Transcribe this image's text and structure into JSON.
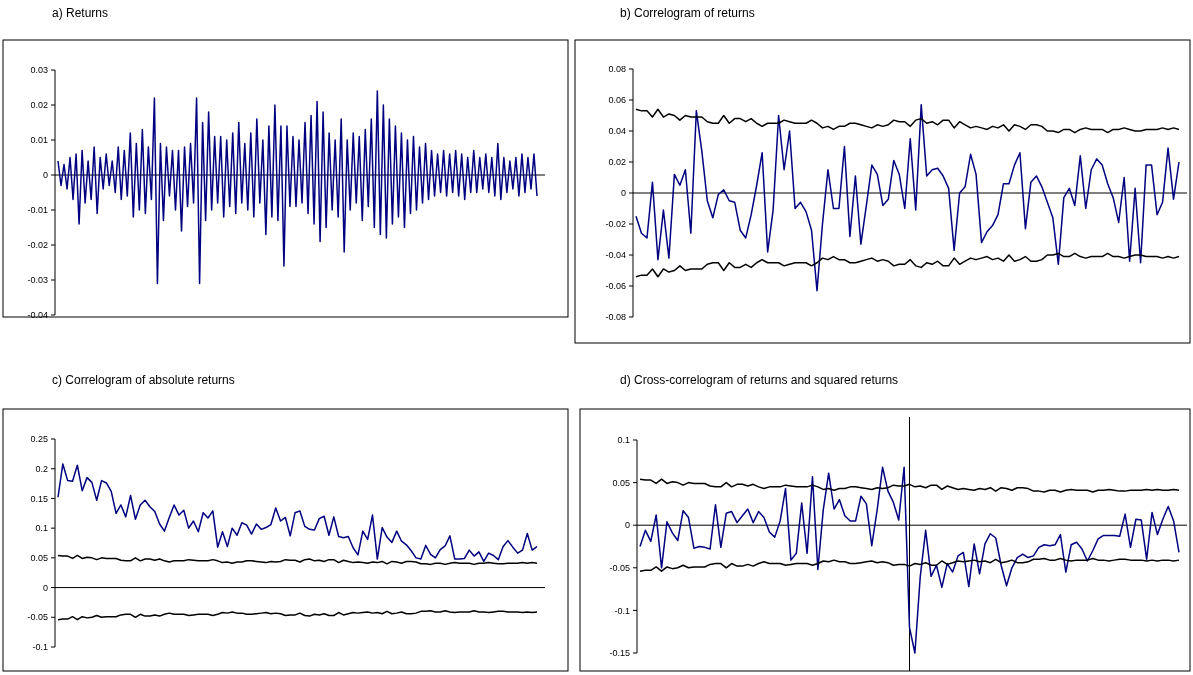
{
  "chart_data": [
    {
      "type": "line",
      "title": "a) Returns",
      "ylim": [
        -0.04,
        0.03
      ],
      "yticks": [
        -0.04,
        -0.03,
        -0.02,
        -0.01,
        0,
        0.01,
        0.02,
        0.03
      ],
      "tick_labels": "y",
      "categories": [
        null,
        null,
        null,
        null,
        null,
        null,
        null,
        null,
        null,
        null,
        null,
        null,
        null,
        null,
        null,
        null,
        null,
        null,
        null,
        null,
        null,
        null,
        null,
        null,
        null,
        null,
        null,
        null,
        null,
        null,
        null,
        null,
        null,
        null,
        null,
        null,
        null,
        null,
        null,
        null,
        null,
        null,
        null,
        null,
        null,
        null,
        null,
        null,
        null,
        null,
        null,
        null,
        null,
        null,
        null,
        null,
        null,
        null,
        null,
        null,
        null,
        null,
        null,
        null,
        null,
        null,
        null,
        null,
        null,
        null,
        null,
        null,
        null,
        null,
        null,
        null,
        null,
        null,
        null,
        null,
        null,
        null,
        null,
        null,
        null,
        null,
        null,
        null,
        null,
        null,
        null,
        null,
        null,
        null,
        null,
        null,
        null,
        null,
        null,
        null,
        null,
        null,
        null,
        null,
        null,
        null,
        null,
        null,
        null,
        null,
        null,
        null,
        null,
        null,
        null,
        null,
        null,
        null,
        null,
        null,
        null,
        null,
        null,
        null,
        null,
        null,
        null,
        null,
        null,
        null,
        null,
        null,
        null,
        null,
        null,
        null,
        null,
        null,
        null,
        null,
        null,
        null,
        null,
        null,
        null,
        null,
        null,
        null,
        null,
        null,
        null,
        null,
        null,
        null,
        null,
        null,
        null,
        null,
        null,
        null
      ],
      "series": [
        {
          "color": "#000080",
          "values": [
            0.004,
            -0.003,
            0.003,
            -0.004,
            0.005,
            -0.007,
            0.006,
            -0.014,
            0.007,
            -0.008,
            0.004,
            -0.007,
            0.008,
            -0.011,
            0.005,
            -0.004,
            0.006,
            -0.003,
            0.004,
            -0.005,
            0.008,
            -0.007,
            0.007,
            -0.006,
            0.012,
            -0.012,
            0.009,
            -0.01,
            0.013,
            -0.011,
            0.008,
            -0.007,
            0.022,
            -0.031,
            0.009,
            -0.013,
            0.008,
            -0.006,
            0.007,
            -0.01,
            0.007,
            -0.016,
            0.008,
            -0.009,
            0.009,
            -0.008,
            0.022,
            -0.031,
            0.015,
            -0.013,
            0.018,
            -0.01,
            0.011,
            -0.008,
            0.011,
            -0.012,
            0.01,
            -0.009,
            0.012,
            -0.011,
            0.015,
            -0.008,
            0.009,
            -0.01,
            0.012,
            -0.012,
            0.016,
            -0.008,
            0.01,
            -0.017,
            0.014,
            -0.012,
            0.02,
            -0.013,
            0.014,
            -0.026,
            0.014,
            -0.009,
            0.011,
            -0.009,
            0.01,
            -0.008,
            0.015,
            -0.011,
            0.017,
            -0.014,
            0.021,
            -0.019,
            0.018,
            -0.015,
            0.012,
            -0.01,
            0.01,
            -0.012,
            0.016,
            -0.022,
            0.01,
            -0.01,
            0.012,
            -0.008,
            0.011,
            -0.013,
            0.013,
            -0.009,
            0.016,
            -0.015,
            0.024,
            -0.017,
            0.02,
            -0.018,
            0.016,
            -0.014,
            0.014,
            -0.012,
            0.012,
            -0.015,
            0.01,
            -0.011,
            0.011,
            -0.01,
            0.008,
            -0.008,
            0.009,
            -0.007,
            0.007,
            -0.006,
            0.006,
            -0.005,
            0.007,
            -0.006,
            0.006,
            -0.005,
            0.007,
            -0.006,
            0.006,
            -0.007,
            0.005,
            -0.005,
            0.007,
            -0.005,
            0.005,
            -0.004,
            0.006,
            -0.005,
            0.005,
            -0.006,
            0.009,
            -0.007,
            0.005,
            -0.005,
            0.004,
            -0.004,
            0.005,
            -0.006,
            0.006,
            -0.005,
            0.005,
            -0.004,
            0.006,
            -0.006
          ]
        }
      ]
    },
    {
      "type": "line",
      "title": "b) Correlogram of returns",
      "ylim": [
        -0.08,
        0.08
      ],
      "yticks": [
        -0.08,
        -0.06,
        -0.04,
        -0.02,
        0,
        0.02,
        0.04,
        0.06,
        0.08
      ],
      "tick_labels": "y",
      "categories": [
        null,
        null,
        null,
        null,
        null,
        null,
        null,
        null,
        null,
        null,
        null,
        null,
        null,
        null,
        null,
        null,
        null,
        null,
        null,
        null,
        null,
        null,
        null,
        null,
        null,
        null,
        null,
        null,
        null,
        null,
        null,
        null,
        null,
        null,
        null,
        null,
        null,
        null,
        null,
        null,
        null,
        null,
        null,
        null,
        null,
        null,
        null,
        null,
        null,
        null,
        null,
        null,
        null,
        null,
        null,
        null,
        null,
        null,
        null,
        null,
        null,
        null,
        null,
        null,
        null,
        null,
        null,
        null,
        null,
        null,
        null,
        null,
        null,
        null,
        null,
        null,
        null,
        null,
        null,
        null,
        null,
        null,
        null,
        null,
        null,
        null,
        null,
        null,
        null,
        null,
        null,
        null,
        null,
        null,
        null,
        null,
        null,
        null,
        null,
        null
      ],
      "series": [
        {
          "color": "#000080",
          "values": [
            -0.015,
            -0.026,
            -0.029,
            0.007,
            -0.043,
            -0.011,
            -0.042,
            0.012,
            0.005,
            0.015,
            -0.026,
            0.053,
            0.027,
            -0.005,
            -0.016,
            -0.001,
            0.002,
            -0.005,
            -0.006,
            -0.024,
            -0.029,
            -0.014,
            0.005,
            0.026,
            -0.038,
            -0.011,
            0.05,
            0.015,
            0.04,
            -0.01,
            -0.006,
            -0.012,
            -0.024,
            -0.063,
            -0.02,
            0.015,
            -0.01,
            -0.01,
            0.03,
            -0.028,
            0.011,
            -0.033,
            -0.008,
            0.018,
            0.012,
            -0.008,
            -0.004,
            0.021,
            0.012,
            -0.01,
            0.035,
            -0.011,
            0.057,
            0.011,
            0.015,
            0.016,
            0.011,
            0.003,
            -0.037,
            0.0,
            0.004,
            0.025,
            0.012,
            -0.032,
            -0.025,
            -0.021,
            -0.014,
            0.006,
            0.006,
            0.018,
            0.026,
            -0.023,
            0.007,
            0.011,
            0.004,
            -0.006,
            -0.016,
            -0.046,
            -0.003,
            0.003,
            -0.008,
            0.024,
            -0.01,
            0.015,
            0.022,
            0.018,
            0.006,
            -0.003,
            -0.019,
            0.01,
            -0.044,
            0.003,
            -0.045,
            0.018,
            0.018,
            -0.014,
            -0.006,
            0.029,
            -0.004,
            0.02
          ]
        },
        {
          "color": "#000000",
          "values": [
            0.054,
            0.053,
            0.053,
            0.049,
            0.054,
            0.049,
            0.051,
            0.05,
            0.047,
            0.05,
            0.049,
            0.049,
            0.049,
            0.046,
            0.045,
            0.045,
            0.05,
            0.045,
            0.048,
            0.048,
            0.046,
            0.048,
            0.045,
            0.043,
            0.045,
            0.045,
            0.045,
            0.047,
            0.046,
            0.045,
            0.045,
            0.045,
            0.047,
            0.045,
            0.042,
            0.043,
            0.041,
            0.043,
            0.043,
            0.045,
            0.045,
            0.044,
            0.043,
            0.042,
            0.044,
            0.043,
            0.044,
            0.047,
            0.046,
            0.046,
            0.043,
            0.047,
            0.048,
            0.045,
            0.046,
            0.044,
            0.047,
            0.047,
            0.042,
            0.046,
            0.044,
            0.042,
            0.043,
            0.042,
            0.041,
            0.043,
            0.042,
            0.044,
            0.04,
            0.044,
            0.043,
            0.041,
            0.044,
            0.044,
            0.043,
            0.04,
            0.04,
            0.039,
            0.041,
            0.041,
            0.039,
            0.041,
            0.042,
            0.041,
            0.041,
            0.041,
            0.039,
            0.041,
            0.041,
            0.042,
            0.041,
            0.04,
            0.04,
            0.041,
            0.041,
            0.041,
            0.042,
            0.041,
            0.042,
            0.041
          ]
        },
        {
          "color": "#000000",
          "values": [
            -0.054,
            -0.053,
            -0.053,
            -0.049,
            -0.054,
            -0.049,
            -0.051,
            -0.05,
            -0.047,
            -0.05,
            -0.049,
            -0.049,
            -0.049,
            -0.046,
            -0.045,
            -0.045,
            -0.05,
            -0.045,
            -0.048,
            -0.048,
            -0.046,
            -0.048,
            -0.045,
            -0.043,
            -0.045,
            -0.045,
            -0.045,
            -0.047,
            -0.046,
            -0.045,
            -0.045,
            -0.045,
            -0.047,
            -0.045,
            -0.042,
            -0.043,
            -0.041,
            -0.043,
            -0.043,
            -0.045,
            -0.045,
            -0.044,
            -0.043,
            -0.042,
            -0.044,
            -0.043,
            -0.044,
            -0.047,
            -0.046,
            -0.046,
            -0.043,
            -0.047,
            -0.048,
            -0.045,
            -0.046,
            -0.044,
            -0.047,
            -0.047,
            -0.042,
            -0.046,
            -0.044,
            -0.042,
            -0.043,
            -0.042,
            -0.041,
            -0.043,
            -0.042,
            -0.044,
            -0.04,
            -0.044,
            -0.043,
            -0.041,
            -0.044,
            -0.044,
            -0.043,
            -0.04,
            -0.04,
            -0.039,
            -0.041,
            -0.041,
            -0.039,
            -0.041,
            -0.042,
            -0.041,
            -0.041,
            -0.041,
            -0.039,
            -0.041,
            -0.041,
            -0.042,
            -0.041,
            -0.04,
            -0.04,
            -0.041,
            -0.041,
            -0.041,
            -0.042,
            -0.041,
            -0.042,
            -0.041
          ]
        }
      ]
    },
    {
      "type": "line",
      "title": "c) Correlogram of absolute returns",
      "ylim": [
        -0.1,
        0.25
      ],
      "yticks": [
        -0.1,
        -0.05,
        0,
        0.05,
        0.1,
        0.15,
        0.2,
        0.25
      ],
      "tick_labels": "y",
      "categories": [
        null,
        null,
        null,
        null,
        null,
        null,
        null,
        null,
        null,
        null,
        null,
        null,
        null,
        null,
        null,
        null,
        null,
        null,
        null,
        null,
        null,
        null,
        null,
        null,
        null,
        null,
        null,
        null,
        null,
        null,
        null,
        null,
        null,
        null,
        null,
        null,
        null,
        null,
        null,
        null,
        null,
        null,
        null,
        null,
        null,
        null,
        null,
        null,
        null,
        null,
        null,
        null,
        null,
        null,
        null,
        null,
        null,
        null,
        null,
        null,
        null,
        null,
        null,
        null,
        null,
        null,
        null,
        null,
        null,
        null,
        null,
        null,
        null,
        null,
        null,
        null,
        null,
        null,
        null,
        null,
        null,
        null,
        null,
        null,
        null,
        null,
        null,
        null,
        null,
        null,
        null,
        null,
        null,
        null,
        null,
        null,
        null,
        null,
        null,
        null
      ],
      "series": [
        {
          "color": "#000080",
          "values": [
            0.152,
            0.208,
            0.18,
            0.179,
            0.206,
            0.163,
            0.185,
            0.177,
            0.147,
            0.18,
            0.176,
            0.162,
            0.125,
            0.139,
            0.119,
            0.155,
            0.115,
            0.139,
            0.147,
            0.136,
            0.128,
            0.107,
            0.095,
            0.118,
            0.139,
            0.122,
            0.13,
            0.1,
            0.112,
            0.094,
            0.126,
            0.117,
            0.129,
            0.068,
            0.094,
            0.069,
            0.1,
            0.088,
            0.109,
            0.105,
            0.09,
            0.107,
            0.098,
            0.101,
            0.106,
            0.134,
            0.112,
            0.118,
            0.087,
            0.126,
            0.129,
            0.103,
            0.098,
            0.097,
            0.116,
            0.12,
            0.088,
            0.119,
            0.086,
            0.084,
            0.086,
            0.067,
            0.055,
            0.095,
            0.081,
            0.122,
            0.048,
            0.101,
            0.085,
            0.076,
            0.095,
            0.078,
            0.072,
            0.062,
            0.05,
            0.048,
            0.071,
            0.056,
            0.05,
            0.064,
            0.07,
            0.087,
            0.048,
            0.048,
            0.049,
            0.063,
            0.053,
            0.06,
            0.044,
            0.058,
            0.054,
            0.047,
            0.069,
            0.079,
            0.068,
            0.058,
            0.063,
            0.091,
            0.063,
            0.069
          ]
        },
        {
          "color": "#000000",
          "values": [
            0.054,
            0.053,
            0.053,
            0.049,
            0.054,
            0.049,
            0.051,
            0.05,
            0.047,
            0.05,
            0.049,
            0.049,
            0.049,
            0.046,
            0.045,
            0.045,
            0.05,
            0.045,
            0.048,
            0.048,
            0.046,
            0.048,
            0.045,
            0.043,
            0.045,
            0.045,
            0.045,
            0.047,
            0.046,
            0.045,
            0.045,
            0.045,
            0.047,
            0.045,
            0.042,
            0.043,
            0.041,
            0.043,
            0.043,
            0.045,
            0.045,
            0.044,
            0.043,
            0.042,
            0.044,
            0.043,
            0.044,
            0.047,
            0.046,
            0.046,
            0.043,
            0.047,
            0.048,
            0.045,
            0.046,
            0.044,
            0.047,
            0.047,
            0.042,
            0.046,
            0.044,
            0.042,
            0.043,
            0.042,
            0.041,
            0.043,
            0.042,
            0.044,
            0.04,
            0.044,
            0.043,
            0.041,
            0.044,
            0.044,
            0.043,
            0.04,
            0.04,
            0.039,
            0.041,
            0.041,
            0.039,
            0.041,
            0.042,
            0.041,
            0.041,
            0.041,
            0.039,
            0.041,
            0.041,
            0.042,
            0.041,
            0.04,
            0.04,
            0.041,
            0.041,
            0.041,
            0.042,
            0.041,
            0.042,
            0.041
          ]
        },
        {
          "color": "#000000",
          "values": [
            -0.054,
            -0.053,
            -0.053,
            -0.049,
            -0.054,
            -0.049,
            -0.051,
            -0.05,
            -0.047,
            -0.05,
            -0.049,
            -0.049,
            -0.049,
            -0.046,
            -0.045,
            -0.045,
            -0.05,
            -0.045,
            -0.048,
            -0.048,
            -0.046,
            -0.048,
            -0.045,
            -0.043,
            -0.045,
            -0.045,
            -0.045,
            -0.047,
            -0.046,
            -0.045,
            -0.045,
            -0.045,
            -0.047,
            -0.045,
            -0.042,
            -0.043,
            -0.041,
            -0.043,
            -0.043,
            -0.045,
            -0.045,
            -0.044,
            -0.043,
            -0.042,
            -0.044,
            -0.043,
            -0.044,
            -0.047,
            -0.046,
            -0.046,
            -0.043,
            -0.047,
            -0.048,
            -0.045,
            -0.046,
            -0.044,
            -0.047,
            -0.047,
            -0.042,
            -0.046,
            -0.044,
            -0.042,
            -0.043,
            -0.042,
            -0.041,
            -0.043,
            -0.042,
            -0.044,
            -0.04,
            -0.044,
            -0.043,
            -0.041,
            -0.044,
            -0.044,
            -0.043,
            -0.04,
            -0.04,
            -0.039,
            -0.041,
            -0.041,
            -0.039,
            -0.041,
            -0.042,
            -0.041,
            -0.041,
            -0.041,
            -0.039,
            -0.041,
            -0.041,
            -0.042,
            -0.041,
            -0.04,
            -0.04,
            -0.041,
            -0.041,
            -0.041,
            -0.042,
            -0.041,
            -0.042,
            -0.041
          ]
        }
      ]
    },
    {
      "type": "line",
      "title": "d) Cross-correlogram of returns and squared returns",
      "ylim": [
        -0.15,
        0.1
      ],
      "yticks": [
        -0.15,
        -0.1,
        -0.05,
        0,
        0.05,
        0.1
      ],
      "tick_labels": "y",
      "categories": [
        null,
        null,
        null,
        null,
        null,
        null,
        null,
        null,
        null,
        null,
        null,
        null,
        null,
        null,
        null,
        null,
        null,
        null,
        null,
        null,
        null,
        null,
        null,
        null,
        null,
        null,
        null,
        null,
        null,
        null,
        null,
        null,
        null,
        null,
        null,
        null,
        null,
        null,
        null,
        null,
        null,
        null,
        null,
        null,
        null,
        null,
        null,
        null,
        null,
        null,
        null,
        null,
        null,
        null,
        null,
        null,
        null,
        null,
        null,
        null,
        null,
        null,
        null,
        null,
        null,
        null,
        null,
        null,
        null,
        null,
        null,
        null,
        null,
        null,
        null,
        null,
        null,
        null,
        null,
        null,
        null,
        null,
        null,
        null,
        null,
        null,
        null,
        null,
        null,
        null,
        null,
        null,
        null,
        null,
        null,
        null,
        null,
        null,
        null,
        null,
        null
      ],
      "series": [
        {
          "color": "#000080",
          "values": [
            -0.025,
            -0.006,
            -0.019,
            0.012,
            -0.05,
            0.004,
            -0.009,
            -0.018,
            0.017,
            0.009,
            -0.027,
            -0.025,
            -0.026,
            -0.028,
            0.024,
            -0.026,
            0.014,
            0.016,
            0.003,
            0.011,
            0.019,
            0.003,
            0.016,
            0.009,
            -0.008,
            -0.014,
            0.005,
            0.043,
            -0.041,
            -0.033,
            0.026,
            -0.033,
            0.057,
            -0.052,
            0.018,
            0.061,
            0.019,
            0.03,
            0.011,
            0.005,
            0.005,
            0.034,
            0.025,
            -0.024,
            0.018,
            0.068,
            0.04,
            0.027,
            0.006,
            0.068,
            -0.12,
            -0.15,
            -0.06,
            -0.006,
            -0.06,
            -0.047,
            -0.073,
            -0.045,
            -0.055,
            -0.036,
            -0.032,
            -0.072,
            -0.022,
            -0.057,
            -0.022,
            -0.01,
            -0.015,
            -0.047,
            -0.071,
            -0.05,
            -0.038,
            -0.034,
            -0.038,
            -0.036,
            -0.026,
            -0.023,
            -0.024,
            -0.023,
            -0.011,
            -0.055,
            -0.023,
            -0.02,
            -0.028,
            -0.042,
            -0.03,
            -0.016,
            -0.012,
            -0.012,
            -0.012,
            -0.013,
            0.013,
            -0.026,
            0.007,
            0.006,
            -0.04,
            0.015,
            -0.011,
            0.007,
            0.022,
            0.005,
            -0.032
          ]
        },
        {
          "color": "#000000",
          "values": [
            0.054,
            0.053,
            0.053,
            0.049,
            0.054,
            0.049,
            0.051,
            0.05,
            0.047,
            0.05,
            0.049,
            0.049,
            0.049,
            0.046,
            0.045,
            0.045,
            0.05,
            0.045,
            0.048,
            0.048,
            0.046,
            0.048,
            0.045,
            0.043,
            0.045,
            0.045,
            0.045,
            0.047,
            0.046,
            0.045,
            0.045,
            0.045,
            0.047,
            0.045,
            0.042,
            0.043,
            0.041,
            0.043,
            0.043,
            0.045,
            0.045,
            0.044,
            0.043,
            0.042,
            0.044,
            0.043,
            0.044,
            0.047,
            0.046,
            0.046,
            0.048,
            0.045,
            0.046,
            0.044,
            0.047,
            0.047,
            0.042,
            0.046,
            0.044,
            0.042,
            0.043,
            0.042,
            0.041,
            0.043,
            0.042,
            0.044,
            0.04,
            0.044,
            0.043,
            0.041,
            0.044,
            0.044,
            0.043,
            0.04,
            0.04,
            0.039,
            0.041,
            0.041,
            0.039,
            0.041,
            0.042,
            0.041,
            0.041,
            0.041,
            0.039,
            0.041,
            0.041,
            0.042,
            0.041,
            0.04,
            0.04,
            0.041,
            0.041,
            0.041,
            0.042,
            0.041,
            0.042,
            0.041,
            0.041,
            0.042,
            0.041
          ]
        },
        {
          "color": "#000000",
          "values": [
            -0.054,
            -0.053,
            -0.053,
            -0.049,
            -0.054,
            -0.049,
            -0.051,
            -0.05,
            -0.047,
            -0.05,
            -0.049,
            -0.049,
            -0.049,
            -0.046,
            -0.045,
            -0.045,
            -0.05,
            -0.045,
            -0.048,
            -0.048,
            -0.046,
            -0.048,
            -0.045,
            -0.043,
            -0.045,
            -0.045,
            -0.045,
            -0.047,
            -0.046,
            -0.045,
            -0.045,
            -0.045,
            -0.047,
            -0.045,
            -0.042,
            -0.043,
            -0.041,
            -0.043,
            -0.043,
            -0.045,
            -0.045,
            -0.044,
            -0.043,
            -0.042,
            -0.044,
            -0.043,
            -0.044,
            -0.047,
            -0.046,
            -0.046,
            -0.048,
            -0.045,
            -0.046,
            -0.044,
            -0.047,
            -0.047,
            -0.042,
            -0.046,
            -0.044,
            -0.042,
            -0.043,
            -0.042,
            -0.041,
            -0.043,
            -0.042,
            -0.044,
            -0.04,
            -0.044,
            -0.043,
            -0.041,
            -0.044,
            -0.044,
            -0.043,
            -0.04,
            -0.04,
            -0.039,
            -0.041,
            -0.041,
            -0.039,
            -0.041,
            -0.042,
            -0.041,
            -0.041,
            -0.041,
            -0.039,
            -0.041,
            -0.041,
            -0.042,
            -0.041,
            -0.04,
            -0.04,
            -0.041,
            -0.041,
            -0.041,
            -0.042,
            -0.041,
            -0.042,
            -0.041,
            -0.041,
            -0.042,
            -0.041
          ]
        }
      ]
    }
  ]
}
